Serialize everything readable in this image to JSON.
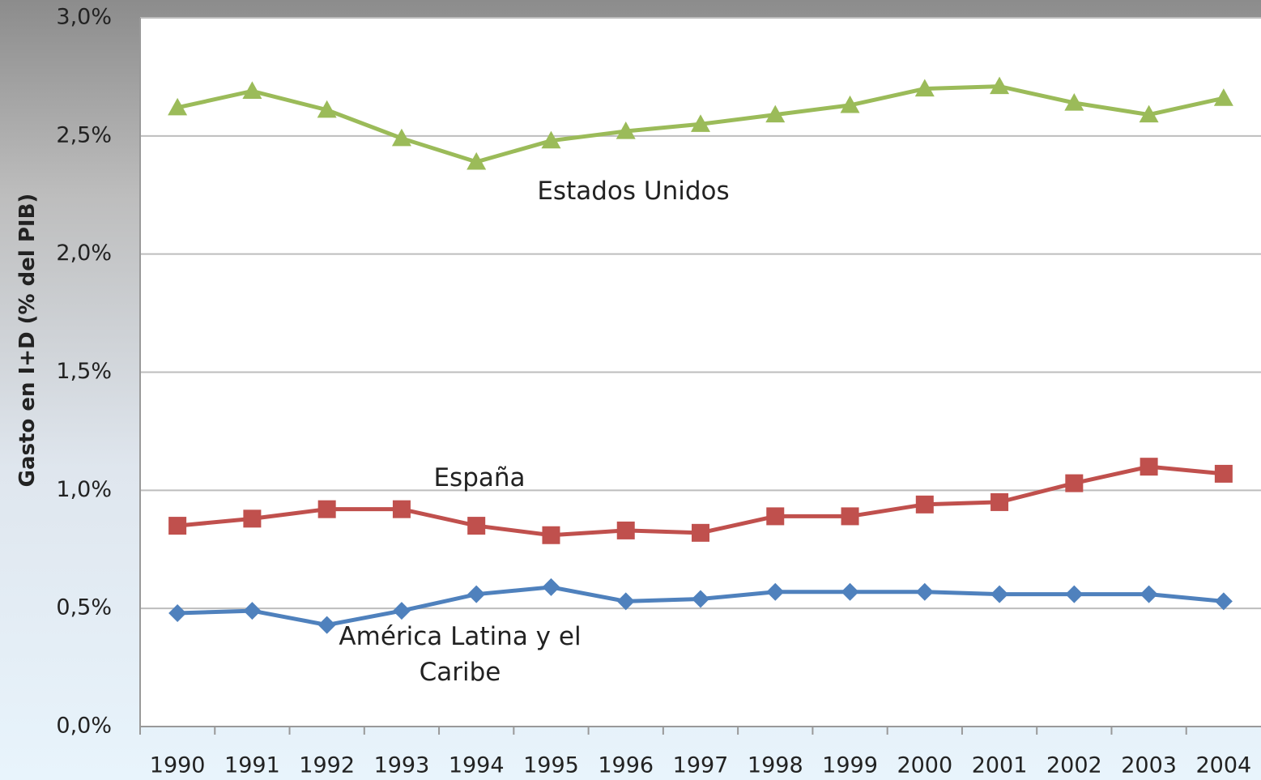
{
  "chart_data": {
    "type": "line",
    "y_label": "Gasto en I+D (% del PIB)",
    "categories": [
      "1990",
      "1991",
      "1992",
      "1993",
      "1994",
      "1995",
      "1996",
      "1997",
      "1998",
      "1999",
      "2000",
      "2001",
      "2002",
      "2003",
      "2004"
    ],
    "series": [
      {
        "name": "Estados Unidos",
        "color": "#9bbb59",
        "marker": "triangle",
        "values": [
          2.62,
          2.69,
          2.61,
          2.49,
          2.39,
          2.48,
          2.52,
          2.55,
          2.59,
          2.63,
          2.7,
          2.71,
          2.64,
          2.59,
          2.66
        ]
      },
      {
        "name": "España",
        "color": "#c0504d",
        "marker": "square",
        "values": [
          0.85,
          0.88,
          0.92,
          0.92,
          0.85,
          0.81,
          0.83,
          0.82,
          0.89,
          0.89,
          0.94,
          0.95,
          1.03,
          1.1,
          1.07
        ]
      },
      {
        "name": "América Latina y el Caribe",
        "color": "#4f81bd",
        "marker": "diamond",
        "values": [
          0.48,
          0.49,
          0.43,
          0.49,
          0.56,
          0.59,
          0.53,
          0.54,
          0.57,
          0.57,
          0.57,
          0.56,
          0.56,
          0.56,
          0.53
        ]
      }
    ],
    "ylim": [
      0,
      3.0
    ],
    "yticks": [
      {
        "value": 0,
        "label": "0,0%"
      },
      {
        "value": 0.5,
        "label": "0,5%"
      },
      {
        "value": 1.0,
        "label": "1,0%"
      },
      {
        "value": 1.5,
        "label": "1,5%"
      },
      {
        "value": 2.0,
        "label": "2,0%"
      },
      {
        "value": 2.5,
        "label": "2,5%"
      },
      {
        "value": 3.0,
        "label": "3,0%"
      }
    ],
    "grid": true
  }
}
